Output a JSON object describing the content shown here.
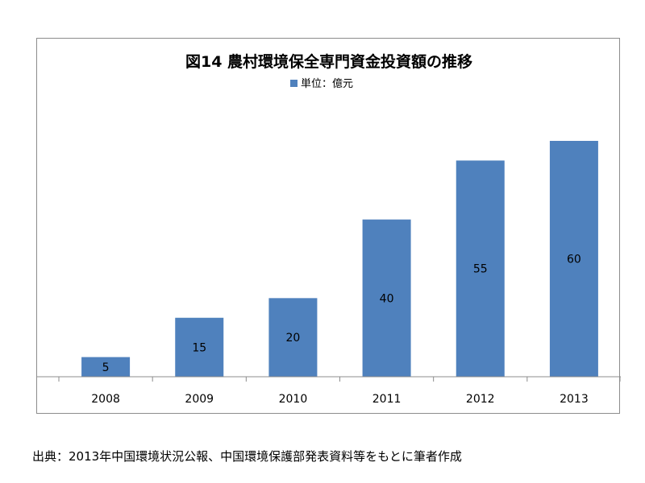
{
  "chart_data": {
    "type": "bar",
    "title": "図14 農村環境保全専門資金投資額の推移",
    "legend": [
      {
        "name": "単位：億元",
        "color": "#4f81bd"
      }
    ],
    "legend_position": "top-center",
    "categories": [
      "2008",
      "2009",
      "2010",
      "2011",
      "2012",
      "2013"
    ],
    "series": [
      {
        "name": "単位：億元",
        "values": [
          5,
          15,
          20,
          40,
          55,
          60
        ],
        "color": "#4f81bd"
      }
    ],
    "data_labels": [
      "5",
      "15",
      "20",
      "40",
      "55",
      "60"
    ],
    "ylim": [
      0,
      65
    ],
    "grid": false,
    "y_axis_visible": false
  },
  "source_note": "出典：2013年中国環境状況公報、中国環境保護部発表資料等をもとに筆者作成"
}
